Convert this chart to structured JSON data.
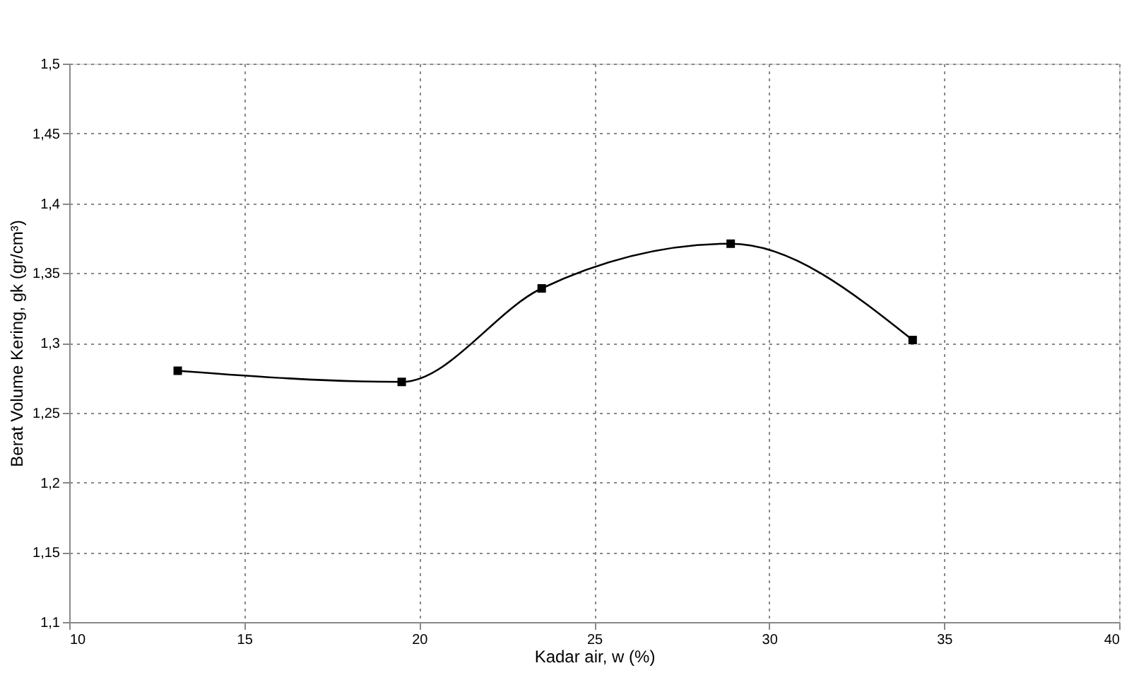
{
  "chart_data": {
    "type": "line",
    "xlabel": "Kadar air, w (%)",
    "ylabel": "Berat Volume Kering, gk (gr/cm³)",
    "x": [
      13.1,
      19.5,
      23.5,
      28.9,
      34.1
    ],
    "series": [
      {
        "color": "#000000",
        "values": [
          1.28,
          1.272,
          1.339,
          1.371,
          1.302
        ]
      }
    ],
    "xlim": [
      10,
      40
    ],
    "xticks": [
      10,
      15,
      20,
      25,
      30,
      35,
      40
    ],
    "ylim": [
      1.1,
      1.5
    ],
    "yticks": [
      {
        "value": 1.1,
        "label": "1,1"
      },
      {
        "value": 1.15,
        "label": "1,15"
      },
      {
        "value": 1.2,
        "label": "1,2"
      },
      {
        "value": 1.25,
        "label": "1,25"
      },
      {
        "value": 1.3,
        "label": "1,3"
      },
      {
        "value": 1.35,
        "label": "1,35"
      },
      {
        "value": 1.4,
        "label": "1,4"
      },
      {
        "value": 1.45,
        "label": "1,45"
      },
      {
        "value": 1.5,
        "label": "1,5"
      }
    ],
    "grid": true,
    "marker": "square",
    "line_style": "solid"
  }
}
